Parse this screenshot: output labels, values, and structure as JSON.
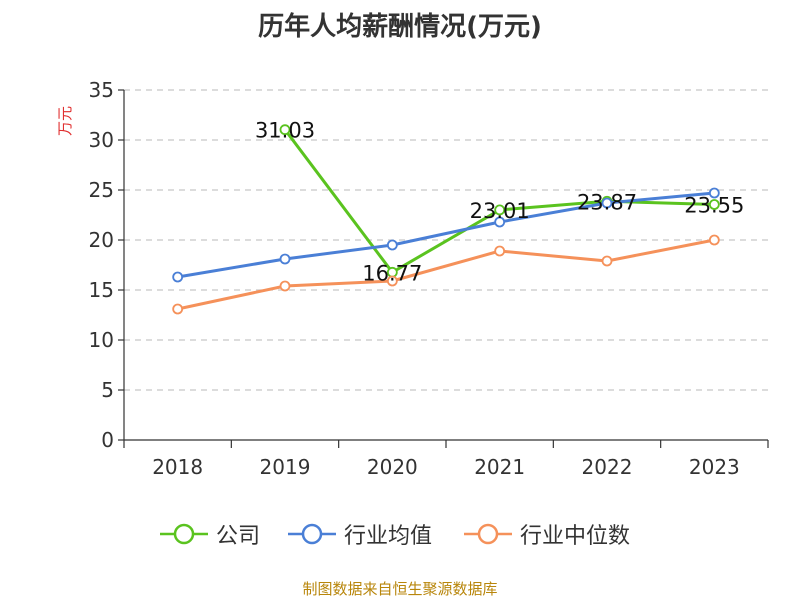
{
  "title": "历年人均薪酬情况(万元)",
  "source": "制图数据来自恒生聚源数据库",
  "colors": {
    "company": "#5ac31f",
    "industry_avg": "#4a7fd6",
    "industry_median": "#f5915a",
    "grid": "#c8c8c8",
    "axis": "#333333",
    "ylabel": "#e03030"
  },
  "chart_data": {
    "type": "line",
    "ylabel": "万元",
    "ylim": [
      0,
      35
    ],
    "yticks": [
      0,
      5,
      10,
      15,
      20,
      25,
      30,
      35
    ],
    "categories": [
      "2018",
      "2019",
      "2020",
      "2021",
      "2022",
      "2023"
    ],
    "grid": "horizontal dashed",
    "legend_position": "bottom",
    "series": [
      {
        "name": "公司",
        "color_key": "company",
        "values": [
          null,
          31.03,
          16.77,
          23.01,
          23.87,
          23.55
        ],
        "labels": [
          null,
          "31.03",
          "16.77",
          "23.01",
          "23.87",
          "23.55"
        ]
      },
      {
        "name": "行业均值",
        "color_key": "industry_avg",
        "values": [
          16.3,
          18.1,
          19.5,
          21.8,
          23.7,
          24.7
        ]
      },
      {
        "name": "行业中位数",
        "color_key": "industry_median",
        "values": [
          13.1,
          15.4,
          15.9,
          18.9,
          17.9,
          20.0
        ]
      }
    ]
  }
}
